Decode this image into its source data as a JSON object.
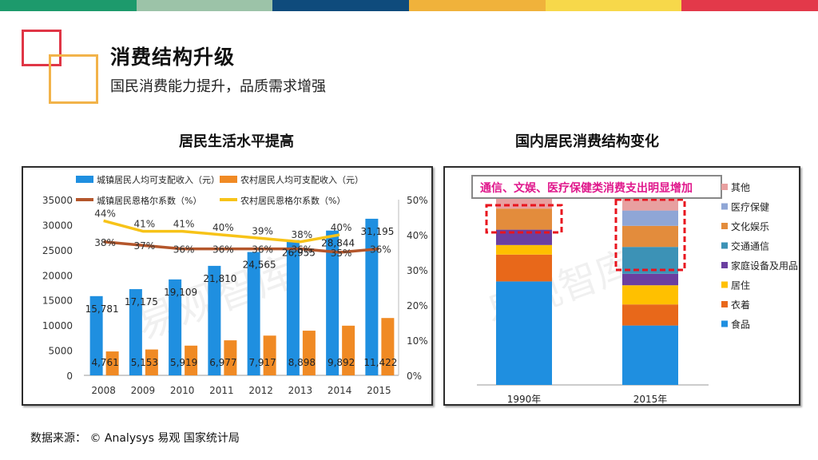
{
  "topbar_colors": [
    "#1d9a6c",
    "#9cc3a8",
    "#0f4b7c",
    "#f0b23b",
    "#f7d84a",
    "#e3394a"
  ],
  "header": {
    "title": "消费结构升级",
    "subtitle": "国民消费能力提升，品质需求增强"
  },
  "left_chart_title": "居民生活水平提高",
  "right_chart_title": "国内居民消费结构变化",
  "source": "数据来源： © Analysys 易观  国家统计局",
  "chart_data": [
    {
      "type": "bar+line",
      "categories": [
        "2008",
        "2009",
        "2010",
        "2011",
        "2012",
        "2013",
        "2014",
        "2015"
      ],
      "series": [
        {
          "name": "城镇居民人均可支配收入（元）",
          "kind": "bar",
          "color": "#1f8fe0",
          "values": [
            15781,
            17175,
            19109,
            21810,
            24565,
            26955,
            28844,
            31195
          ],
          "labels": [
            "15,781",
            "17,175",
            "19,109",
            "21,810",
            "24,565",
            "26,955",
            "28,844",
            "31,195"
          ]
        },
        {
          "name": "农村居民人均可支配收入（元）",
          "kind": "bar",
          "color": "#f08a24",
          "values": [
            4761,
            5153,
            5919,
            6977,
            7917,
            8898,
            9892,
            11422
          ],
          "labels": [
            "4,761",
            "5,153",
            "5,919",
            "6,977",
            "7,917",
            "8,898",
            "9,892",
            "11,422"
          ]
        },
        {
          "name": "城镇居民恩格尔系数（%）",
          "kind": "line",
          "color": "#b4562b",
          "values": [
            38,
            37,
            36,
            36,
            36,
            36,
            35,
            36
          ],
          "labels": [
            "38%",
            "37%",
            "36%",
            "36%",
            "36%",
            "36%",
            "35%",
            "36%"
          ]
        },
        {
          "name": "农村居民恩格尔系数（%）",
          "kind": "line",
          "color": "#f7c318",
          "values": [
            44,
            41,
            41,
            40,
            39,
            38,
            40,
            null
          ],
          "labels": [
            "44%",
            "41%",
            "41%",
            "40%",
            "39%",
            "38%",
            "40%",
            ""
          ]
        }
      ],
      "y_left": {
        "min": 0,
        "max": 35000,
        "ticks": [
          "0",
          "5000",
          "10000",
          "15000",
          "20000",
          "25000",
          "30000",
          "35000"
        ]
      },
      "y_right": {
        "min": 0,
        "max": 50,
        "ticks": [
          "0%",
          "10%",
          "20%",
          "30%",
          "40%",
          "50%"
        ]
      },
      "watermark": "易观智库"
    },
    {
      "type": "stacked-bar",
      "categories": [
        "1990年",
        "2015年"
      ],
      "series": [
        {
          "name": "食品",
          "color": "#1f8fe0",
          "values": [
            54,
            31
          ]
        },
        {
          "name": "衣着",
          "color": "#e8681a",
          "values": [
            14,
            11
          ]
        },
        {
          "name": "居住",
          "color": "#ffc000",
          "values": [
            5,
            10
          ]
        },
        {
          "name": "家庭设备及用品",
          "color": "#6b3fa0",
          "values": [
            8,
            6
          ]
        },
        {
          "name": "交通通信",
          "color": "#3c92b6",
          "values": [
            0,
            14
          ]
        },
        {
          "name": "文化娱乐",
          "color": "#e38c3c",
          "values": [
            11,
            11
          ]
        },
        {
          "name": "医疗保健",
          "color": "#8fa6d6",
          "values": [
            0,
            8
          ]
        },
        {
          "name": "其他",
          "color": "#e8a0a0",
          "values": [
            8,
            9
          ]
        }
      ],
      "legend_order": [
        "其他",
        "医疗保健",
        "文化娱乐",
        "交通通信",
        "家庭设备及用品",
        "居住",
        "衣着",
        "食品"
      ],
      "annotation": "通信、文娱、医疗保健类消费支出明显增加",
      "watermark": "易观智库"
    }
  ]
}
